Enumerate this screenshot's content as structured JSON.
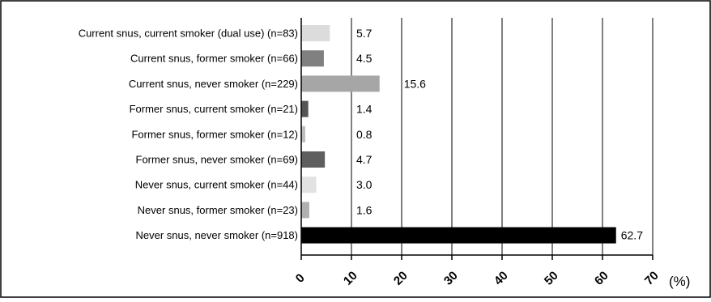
{
  "chart_data": {
    "type": "bar",
    "orientation": "horizontal",
    "categories": [
      "Current snus, current smoker (dual use) (n=83)",
      "Current snus, former smoker (n=66)",
      "Current snus, never smoker (n=229)",
      "Former snus, current smoker (n=21)",
      "Former snus, former smoker (n=12)",
      "Former snus, never smoker (n=69)",
      "Never snus, current smoker (n=44)",
      "Never snus, former smoker (n=23)",
      "Never snus, never smoker (n=918)"
    ],
    "values": [
      5.7,
      4.5,
      15.6,
      1.4,
      0.8,
      4.7,
      3.0,
      1.6,
      62.7
    ],
    "value_labels": [
      "5.7",
      "4.5",
      "15.6",
      "1.4",
      "0.8",
      "4.7",
      "3.0",
      "1.6",
      "62.7"
    ],
    "bar_colors": [
      "#dcdcdc",
      "#808080",
      "#a6a6a6",
      "#555555",
      "#bdbdbd",
      "#5e5e5e",
      "#e2e2e2",
      "#b0b0b0",
      "#000000"
    ],
    "x_ticks": [
      0,
      10,
      20,
      30,
      40,
      50,
      60,
      70
    ],
    "x_tick_labels": [
      "0",
      "10",
      "20",
      "30",
      "40",
      "50",
      "60",
      "70"
    ],
    "xlim": [
      0,
      70
    ],
    "x_unit": "(%)",
    "title": "",
    "xlabel": "",
    "ylabel": "",
    "grid": true,
    "grid_axis": "x",
    "legend": "none"
  }
}
